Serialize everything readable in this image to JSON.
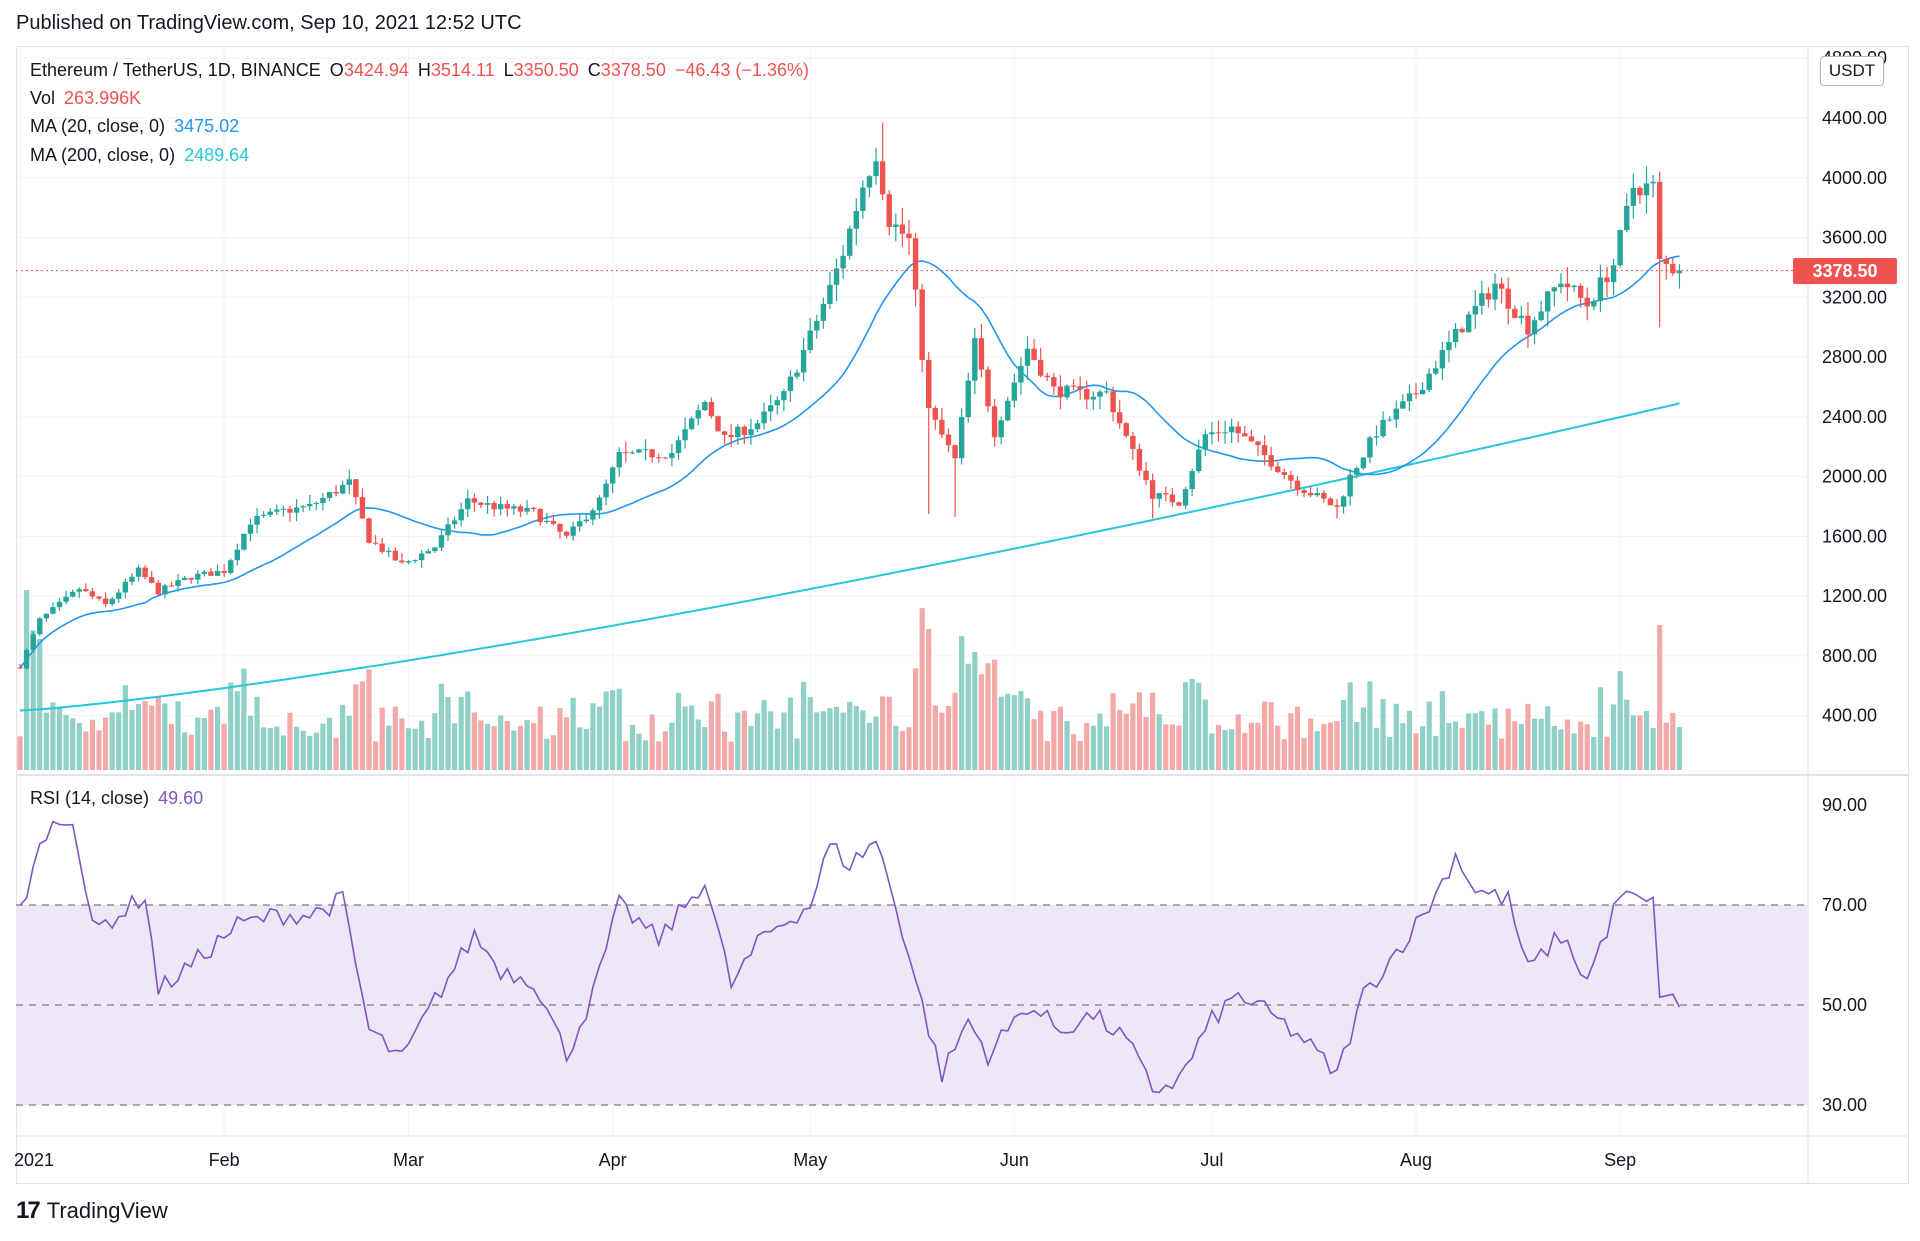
{
  "header": {
    "published": "Published on TradingView.com, Sep 10, 2021 12:52 UTC"
  },
  "footer": {
    "brand": "TradingView",
    "logo_mark": "17"
  },
  "legend": {
    "symbol": "Ethereum / TetherUS, 1D, BINANCE",
    "o_label": "O",
    "o_value": "3424.94",
    "h_label": "H",
    "h_value": "3514.11",
    "l_label": "L",
    "l_value": "3350.50",
    "c_label": "C",
    "c_value": "3378.50",
    "change": "−46.43 (−1.36%)",
    "vol_label": "Vol",
    "vol_value": "263.996K",
    "ma20_label": "MA (20, close, 0)",
    "ma20_value": "3475.02",
    "ma200_label": "MA (200, close, 0)",
    "ma200_value": "2489.64",
    "rsi_label": "RSI (14, close)",
    "rsi_value": "49.60"
  },
  "price_axis": {
    "unit": "USDT",
    "ticks": [
      "4800.00",
      "4400.00",
      "4000.00",
      "3600.00",
      "3200.00",
      "2800.00",
      "2400.00",
      "2000.00",
      "1600.00",
      "1200.00",
      "800.00",
      "400.00"
    ],
    "last_price": "3378.50"
  },
  "rsi_axis": {
    "ticks": [
      "90.00",
      "70.00",
      "50.00",
      "30.00"
    ]
  },
  "time_axis": {
    "labels": [
      "2021",
      "Feb",
      "Mar",
      "Apr",
      "May",
      "Jun",
      "Jul",
      "Aug",
      "Sep"
    ]
  },
  "colors": {
    "up": "#26a69a",
    "down": "#ef5350",
    "up_vol": "#8fd1c7",
    "down_vol": "#f4a9a8",
    "ma20": "#2196f3",
    "ma200": "#26c6da",
    "rsi": "#7e57c2",
    "rsi_band": "#ede7f6",
    "grid": "#f0f3fa"
  },
  "chart_data": {
    "type": "candlestick",
    "title": "Ethereum / TetherUS, 1D, BINANCE",
    "interval": "1D",
    "date_range": [
      "2021-01-01",
      "2021-09-10"
    ],
    "price_ylim": [
      400,
      4800
    ],
    "close_anchors": [
      [
        "2021-01-01",
        730
      ],
      [
        "2021-01-04",
        1040
      ],
      [
        "2021-01-10",
        1250
      ],
      [
        "2021-01-14",
        1140
      ],
      [
        "2021-01-19",
        1370
      ],
      [
        "2021-01-22",
        1230
      ],
      [
        "2021-01-27",
        1330
      ],
      [
        "2021-02-01",
        1370
      ],
      [
        "2021-02-05",
        1700
      ],
      [
        "2021-02-10",
        1770
      ],
      [
        "2021-02-14",
        1800
      ],
      [
        "2021-02-20",
        1960
      ],
      [
        "2021-02-23",
        1580
      ],
      [
        "2021-02-28",
        1410
      ],
      [
        "2021-03-05",
        1530
      ],
      [
        "2021-03-10",
        1840
      ],
      [
        "2021-03-15",
        1790
      ],
      [
        "2021-03-20",
        1760
      ],
      [
        "2021-03-25",
        1590
      ],
      [
        "2021-03-30",
        1840
      ],
      [
        "2021-04-02",
        2140
      ],
      [
        "2021-04-10",
        2160
      ],
      [
        "2021-04-15",
        2500
      ],
      [
        "2021-04-18",
        2250
      ],
      [
        "2021-04-23",
        2360
      ],
      [
        "2021-04-27",
        2540
      ],
      [
        "2021-05-01",
        2940
      ],
      [
        "2021-05-04",
        3260
      ],
      [
        "2021-05-06",
        3500
      ],
      [
        "2021-05-09",
        3950
      ],
      [
        "2021-05-11",
        4170
      ],
      [
        "2021-05-13",
        3720
      ],
      [
        "2021-05-16",
        3580
      ],
      [
        "2021-05-19",
        2440
      ],
      [
        "2021-05-23",
        2110
      ],
      [
        "2021-05-26",
        2890
      ],
      [
        "2021-05-29",
        2300
      ],
      [
        "2021-06-03",
        2860
      ],
      [
        "2021-06-07",
        2580
      ],
      [
        "2021-06-12",
        2550
      ],
      [
        "2021-06-15",
        2560
      ],
      [
        "2021-06-19",
        2160
      ],
      [
        "2021-06-22",
        1880
      ],
      [
        "2021-06-26",
        1830
      ],
      [
        "2021-06-30",
        2280
      ],
      [
        "2021-07-04",
        2330
      ],
      [
        "2021-07-09",
        2140
      ],
      [
        "2021-07-14",
        1940
      ],
      [
        "2021-07-20",
        1790
      ],
      [
        "2021-07-22",
        2000
      ],
      [
        "2021-07-26",
        2300
      ],
      [
        "2021-08-01",
        2560
      ],
      [
        "2021-08-05",
        2820
      ],
      [
        "2021-08-08",
        3010
      ],
      [
        "2021-08-13",
        3290
      ],
      [
        "2021-08-18",
        3000
      ],
      [
        "2021-08-23",
        3320
      ],
      [
        "2021-08-27",
        3150
      ],
      [
        "2021-08-31",
        3420
      ],
      [
        "2021-09-03",
        3940
      ],
      [
        "2021-09-06",
        3940
      ],
      [
        "2021-09-07",
        3430
      ],
      [
        "2021-09-10",
        3378.5
      ]
    ],
    "ma200_range": [
      435,
      2489.64
    ],
    "rsi_anchors": [
      [
        "2021-01-01",
        69
      ],
      [
        "2021-01-05",
        85
      ],
      [
        "2021-01-09",
        88
      ],
      [
        "2021-01-12",
        65
      ],
      [
        "2021-01-16",
        68
      ],
      [
        "2021-01-20",
        72
      ],
      [
        "2021-01-22",
        53
      ],
      [
        "2021-01-27",
        58
      ],
      [
        "2021-02-03",
        66
      ],
      [
        "2021-02-09",
        68
      ],
      [
        "2021-02-14",
        68
      ],
      [
        "2021-02-19",
        71
      ],
      [
        "2021-02-23",
        45
      ],
      [
        "2021-02-28",
        39
      ],
      [
        "2021-03-05",
        51
      ],
      [
        "2021-03-11",
        64
      ],
      [
        "2021-03-15",
        57
      ],
      [
        "2021-03-20",
        55
      ],
      [
        "2021-03-25",
        40
      ],
      [
        "2021-03-29",
        52
      ],
      [
        "2021-04-02",
        70
      ],
      [
        "2021-04-08",
        63
      ],
      [
        "2021-04-15",
        75
      ],
      [
        "2021-04-19",
        54
      ],
      [
        "2021-04-24",
        64
      ],
      [
        "2021-05-01",
        70
      ],
      [
        "2021-05-04",
        82
      ],
      [
        "2021-05-07",
        78
      ],
      [
        "2021-05-11",
        83
      ],
      [
        "2021-05-14",
        70
      ],
      [
        "2021-05-18",
        50
      ],
      [
        "2021-05-21",
        36
      ],
      [
        "2021-05-25",
        47
      ],
      [
        "2021-05-28",
        40
      ],
      [
        "2021-06-03",
        50
      ],
      [
        "2021-06-08",
        45
      ],
      [
        "2021-06-13",
        48
      ],
      [
        "2021-06-18",
        43
      ],
      [
        "2021-06-22",
        33
      ],
      [
        "2021-06-26",
        35
      ],
      [
        "2021-07-01",
        47
      ],
      [
        "2021-07-05",
        52
      ],
      [
        "2021-07-10",
        48
      ],
      [
        "2021-07-15",
        43
      ],
      [
        "2021-07-20",
        36
      ],
      [
        "2021-07-24",
        52
      ],
      [
        "2021-08-01",
        66
      ],
      [
        "2021-08-04",
        72
      ],
      [
        "2021-08-07",
        80
      ],
      [
        "2021-08-10",
        73
      ],
      [
        "2021-08-15",
        71
      ],
      [
        "2021-08-18",
        57
      ],
      [
        "2021-08-23",
        64
      ],
      [
        "2021-08-27",
        55
      ],
      [
        "2021-09-01",
        72
      ],
      [
        "2021-09-06",
        70
      ],
      [
        "2021-09-07",
        53
      ],
      [
        "2021-09-10",
        49.6
      ]
    ],
    "rsi_ylim": [
      26,
      94
    ],
    "rsi_levels": [
      70,
      50,
      30
    ],
    "volume_peak_date": "2021-05-19"
  }
}
